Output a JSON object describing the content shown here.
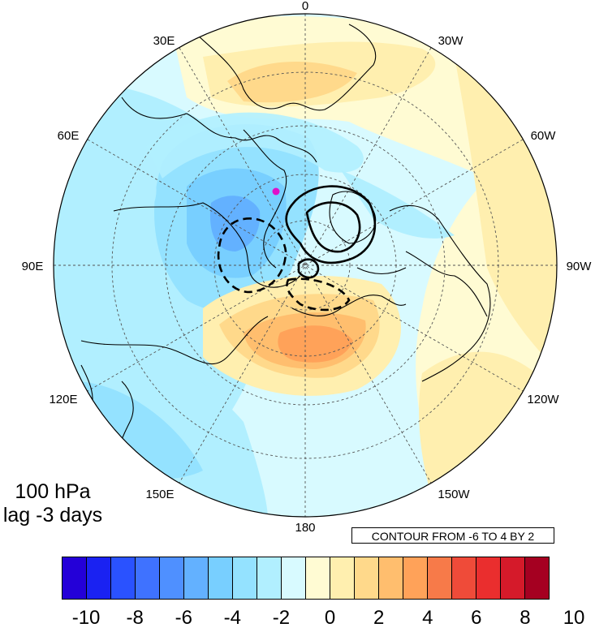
{
  "panel": {
    "level": "100 hPa",
    "lag": "lag -3 days"
  },
  "contour_info": "CONTOUR FROM -6 TO 4 BY 2",
  "longitude_labels": {
    "top": "0",
    "upper_left": "30E",
    "upper_right": "30W",
    "left_upper": "60E",
    "right_upper": "60W",
    "left": "90E",
    "right": "90W",
    "left_lower": "120E",
    "right_lower": "120W",
    "lower_left": "150E",
    "lower_right": "150W",
    "bottom": "180"
  },
  "colorbar": {
    "colors": [
      "#2400d8",
      "#1a22f2",
      "#2a52ff",
      "#3f72ff",
      "#4f90ff",
      "#63b1ff",
      "#78cfff",
      "#94e2ff",
      "#b1efff",
      "#d8faff",
      "#fffbd3",
      "#ffefaf",
      "#ffd98b",
      "#ffbe6e",
      "#ffa259",
      "#f77a49",
      "#ef4b39",
      "#ea2e2e",
      "#d51a2a",
      "#a50021"
    ],
    "labels": [
      "-10",
      "-8",
      "-6",
      "-4",
      "-2",
      "0",
      "2",
      "4",
      "6",
      "8",
      "10"
    ]
  },
  "map": {
    "projection": "north polar stereographic",
    "marker_color": "#e00fc9"
  }
}
